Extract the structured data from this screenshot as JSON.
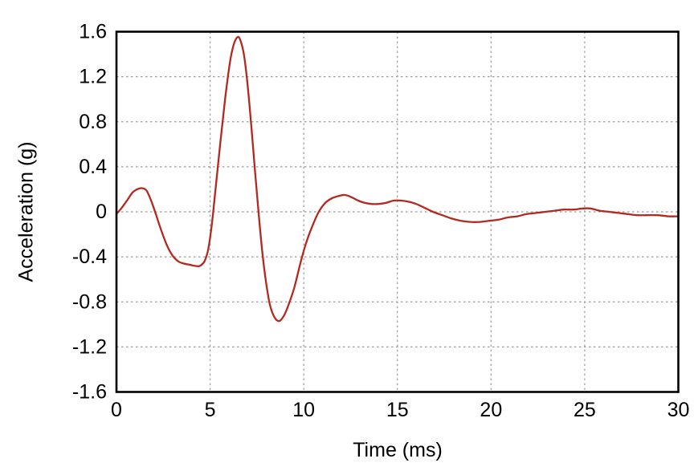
{
  "figure": {
    "background": "#ffffff",
    "frame_color": "#000000",
    "grid_color": "#999999",
    "tick_label_color": "#000000"
  },
  "chart_data": {
    "type": "line",
    "title": "",
    "xlabel": "Time (ms)",
    "ylabel": "Acceleration (g)",
    "xlim": [
      0,
      30
    ],
    "ylim": [
      -1.6,
      1.6
    ],
    "xticks": [
      0,
      5,
      10,
      15,
      20,
      25,
      30
    ],
    "xtick_labels": [
      "0",
      "5",
      "10",
      "15",
      "20",
      "25",
      "30"
    ],
    "yticks": [
      -1.6,
      -1.2,
      -0.8,
      -0.4,
      0,
      0.4,
      0.8,
      1.2,
      1.6
    ],
    "ytick_labels": [
      "-1.6",
      "-1.2",
      "-0.8",
      "-0.4",
      "0",
      "0.4",
      "0.8",
      "1.2",
      "1.6"
    ],
    "grid": "dashed-both-axes",
    "legend": "none",
    "series": [
      {
        "name": "acceleration",
        "color": "#b3291f",
        "x": [
          0,
          0.3,
          0.6,
          0.85,
          1.1,
          1.35,
          1.6,
          1.85,
          2.1,
          2.4,
          2.7,
          3.0,
          3.3,
          3.6,
          3.9,
          4.2,
          4.45,
          4.7,
          4.9,
          5.1,
          5.3,
          5.55,
          5.8,
          6.05,
          6.25,
          6.45,
          6.6,
          6.8,
          7.0,
          7.2,
          7.4,
          7.6,
          7.8,
          8.0,
          8.2,
          8.45,
          8.7,
          8.95,
          9.2,
          9.5,
          9.8,
          10.1,
          10.45,
          10.8,
          11.15,
          11.5,
          11.85,
          12.2,
          12.55,
          12.9,
          13.25,
          13.6,
          14.0,
          14.4,
          14.8,
          15.2,
          15.6,
          16.0,
          16.4,
          16.9,
          17.4,
          17.9,
          18.4,
          18.9,
          19.4,
          19.9,
          20.4,
          20.9,
          21.4,
          21.9,
          22.4,
          22.9,
          23.4,
          23.9,
          24.4,
          24.9,
          25.3,
          25.8,
          26.3,
          26.8,
          27.3,
          27.8,
          28.3,
          28.9,
          29.5,
          30
        ],
        "y": [
          -0.02,
          0.04,
          0.11,
          0.17,
          0.2,
          0.21,
          0.19,
          0.1,
          -0.02,
          -0.17,
          -0.3,
          -0.39,
          -0.44,
          -0.46,
          -0.47,
          -0.48,
          -0.48,
          -0.44,
          -0.33,
          -0.1,
          0.22,
          0.62,
          1.0,
          1.32,
          1.48,
          1.55,
          1.53,
          1.4,
          1.13,
          0.76,
          0.36,
          -0.03,
          -0.38,
          -0.64,
          -0.83,
          -0.94,
          -0.97,
          -0.92,
          -0.82,
          -0.67,
          -0.47,
          -0.29,
          -0.13,
          0.0,
          0.08,
          0.12,
          0.14,
          0.15,
          0.13,
          0.1,
          0.08,
          0.07,
          0.07,
          0.08,
          0.1,
          0.1,
          0.09,
          0.07,
          0.04,
          0.0,
          -0.03,
          -0.06,
          -0.08,
          -0.09,
          -0.09,
          -0.08,
          -0.07,
          -0.05,
          -0.04,
          -0.02,
          -0.01,
          0.0,
          0.01,
          0.02,
          0.02,
          0.03,
          0.03,
          0.01,
          0.0,
          -0.01,
          -0.02,
          -0.03,
          -0.03,
          -0.03,
          -0.04,
          -0.04
        ]
      }
    ]
  }
}
